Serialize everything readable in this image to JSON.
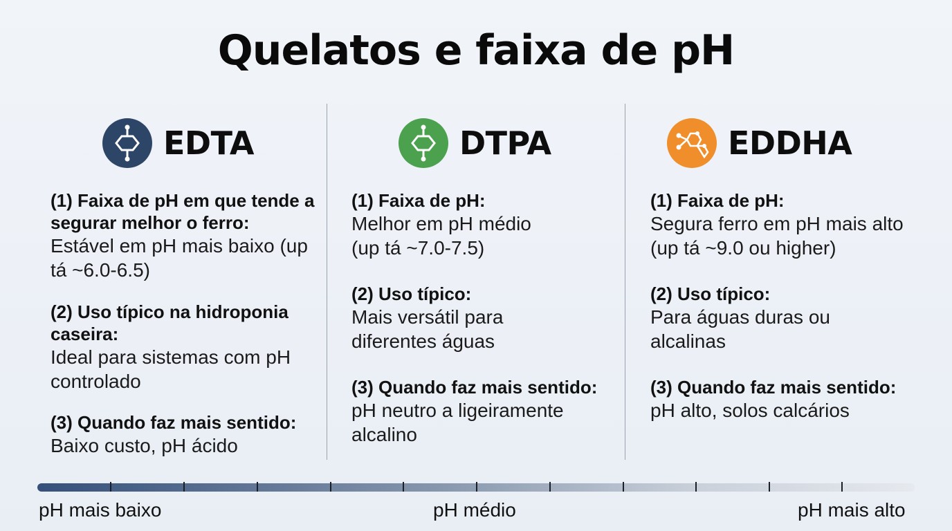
{
  "title": "Quelatos e faixa de pH",
  "columns": [
    {
      "name": "EDTA",
      "icon": "molecule-icon",
      "icon_color": "#2d4566",
      "items": [
        {
          "head": "(1) Faixa de pH em que tende a segurar melhor o ferro:",
          "body": "Estável em pH mais baixo (up tá ~6.0-6.5)"
        },
        {
          "head": "(2) Uso típico na hidroponia caseira:",
          "body": "Ideal para sistemas com pH controlado"
        },
        {
          "head": "(3) Quando faz mais sentido:",
          "body": "Baixo custo, pH ácido"
        }
      ]
    },
    {
      "name": "DTPA",
      "icon": "molecule-icon",
      "icon_color": "#4ca14e",
      "items": [
        {
          "head": "(1) Faixa de pH:",
          "body": "Melhor em pH médio (up tá ~7.0-7.5)"
        },
        {
          "head": "(2) Uso típico:",
          "body": "Mais versátil para diferentes águas"
        },
        {
          "head": "(3) Quando faz mais sentido:",
          "body": "pH neutro a ligeiramente alcalino"
        }
      ]
    },
    {
      "name": "EDDHA",
      "icon": "molecule-cluster-icon",
      "icon_color": "#ef8e2b",
      "items": [
        {
          "head": "(1) Faixa de pH:",
          "body": "Segura ferro em pH mais alto (up tá ~9.0 ou higher)"
        },
        {
          "head": "(2) Uso típico:",
          "body": "Para águas duras ou alcalinas"
        },
        {
          "head": "(3) Quando faz mais sentido:",
          "body": "pH alto, solos calcários"
        }
      ]
    }
  ],
  "scale": {
    "low_label": "pH mais baixo",
    "mid_label": "pH médio",
    "high_label": "pH mais alto",
    "gradient_start": "#34507a",
    "gradient_end": "#e6e9ee"
  }
}
